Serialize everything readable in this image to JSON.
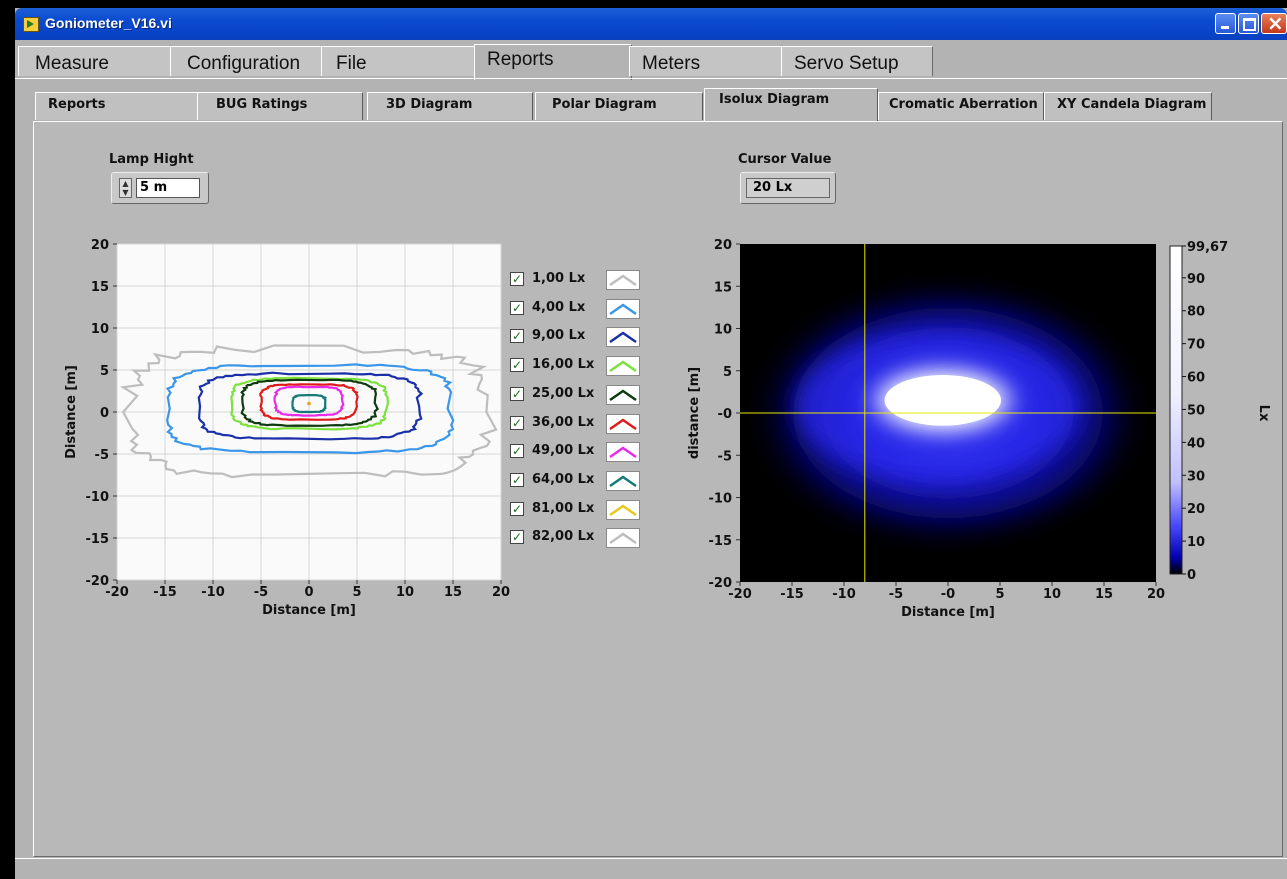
{
  "window": {
    "title": "Goniometer_V16.vi"
  },
  "main_tabs": [
    {
      "label": "Measure",
      "active": false
    },
    {
      "label": "Configuration",
      "active": false
    },
    {
      "label": "File",
      "active": false
    },
    {
      "label": "Reports",
      "active": true
    },
    {
      "label": "Meters",
      "active": false
    },
    {
      "label": "Servo Setup",
      "active": false
    }
  ],
  "sub_tabs": [
    {
      "label": "Reports",
      "active": false
    },
    {
      "label": "BUG Ratings",
      "active": false
    },
    {
      "label": "3D Diagram",
      "active": false
    },
    {
      "label": "Polar Diagram",
      "active": false
    },
    {
      "label": "Isolux Diagram",
      "active": true
    },
    {
      "label": "Cromatic Aberration",
      "active": false
    },
    {
      "label": "XY Candela Diagram",
      "active": false
    }
  ],
  "lamp_height": {
    "label": "Lamp Hight",
    "value": "5 m"
  },
  "cursor_value": {
    "label": "Cursor Value",
    "value": "20 Lx"
  },
  "isolux_legend": [
    {
      "label": "1,00 Lx",
      "color": "#bdbdbd",
      "checked": true
    },
    {
      "label": "4,00 Lx",
      "color": "#3a96e8",
      "checked": true
    },
    {
      "label": "9,00 Lx",
      "color": "#1a2fa8",
      "checked": true
    },
    {
      "label": "16,00 Lx",
      "color": "#7ae23a",
      "checked": true
    },
    {
      "label": "25,00 Lx",
      "color": "#0f3a0f",
      "checked": true
    },
    {
      "label": "36,00 Lx",
      "color": "#e01a1a",
      "checked": true
    },
    {
      "label": "49,00 Lx",
      "color": "#e82be8",
      "checked": true
    },
    {
      "label": "64,00 Lx",
      "color": "#167878",
      "checked": true
    },
    {
      "label": "81,00 Lx",
      "color": "#e8c81a",
      "checked": true
    },
    {
      "label": "82,00 Lx",
      "color": "#bdbdbd",
      "checked": true
    }
  ],
  "chart_data": [
    {
      "type": "line",
      "xlabel": "Distance [m]",
      "ylabel": "Distance [m]",
      "xlim": [
        -20,
        20
      ],
      "ylim": [
        -20,
        20
      ],
      "xticks": [
        "-20",
        "-15",
        "-10",
        "-5",
        "0",
        "5",
        "10",
        "15",
        "20"
      ],
      "yticks": [
        "20",
        "15",
        "10",
        "5",
        "0",
        "-5",
        "-10",
        "-15",
        "-20"
      ],
      "grid": true,
      "series": [
        {
          "name": "1,00 Lx",
          "rx": 18.5,
          "ry": 7.5,
          "cy": 0
        },
        {
          "name": "4,00 Lx",
          "rx": 14.8,
          "ry": 5.2,
          "cy": 0.4
        },
        {
          "name": "9,00 Lx",
          "rx": 11.5,
          "ry": 3.9,
          "cy": 0.7
        },
        {
          "name": "16,00 Lx",
          "rx": 8.1,
          "ry": 3.0,
          "cy": 1.0
        },
        {
          "name": "25,00 Lx",
          "rx": 7.0,
          "ry": 2.7,
          "cy": 1.1
        },
        {
          "name": "36,00 Lx",
          "rx": 5.0,
          "ry": 2.1,
          "cy": 1.2
        },
        {
          "name": "49,00 Lx",
          "rx": 3.5,
          "ry": 1.7,
          "cy": 1.3
        },
        {
          "name": "64,00 Lx",
          "rx": 1.7,
          "ry": 1.0,
          "cy": 1.0
        }
      ]
    },
    {
      "type": "heatmap",
      "xlabel": "Distance [m]",
      "ylabel": "distance [m]",
      "xlim": [
        -20,
        20
      ],
      "ylim": [
        -20,
        20
      ],
      "xticks": [
        "-20",
        "-15",
        "-10",
        "-5",
        "-0",
        "5",
        "10",
        "15",
        "20"
      ],
      "yticks": [
        "20",
        "15",
        "10",
        "5",
        "-0",
        "-5",
        "-10",
        "-15",
        "-20"
      ],
      "colorbar": {
        "label": "Lx",
        "max": "99,67",
        "ticks": [
          "90",
          "80",
          "70",
          "60",
          "50",
          "40",
          "30",
          "20",
          "10",
          "0"
        ]
      },
      "cursor": {
        "x": -8,
        "y": 0
      }
    }
  ]
}
